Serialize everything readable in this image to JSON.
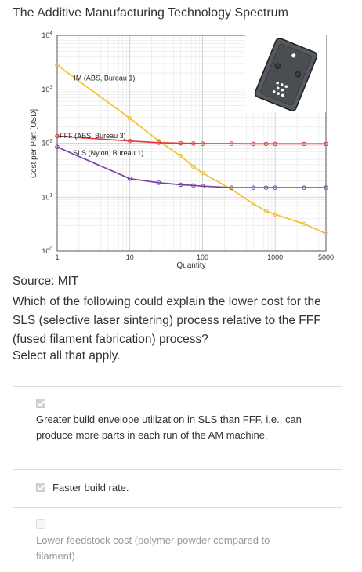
{
  "figure_title": "The Additive Manufacturing Technology Spectrum",
  "chart_data": {
    "type": "line",
    "xscale": "log",
    "yscale": "log",
    "xlim": [
      1,
      5000
    ],
    "ylim": [
      1,
      10000
    ],
    "xlabel": "Quantity",
    "ylabel": "Cost per Part [USD]",
    "x_tick_labels": [
      "1",
      "10",
      "100",
      "1000",
      "5000"
    ],
    "x_ticks": [
      1,
      10,
      100,
      1000,
      5000
    ],
    "y_ticks": [
      1,
      10,
      100,
      1000,
      10000
    ],
    "y_tick_bases": [
      "10",
      "10",
      "10",
      "10",
      "10"
    ],
    "y_tick_exponents": [
      "0",
      "1",
      "2",
      "3",
      "4"
    ],
    "grid": true,
    "series": [
      {
        "name": "IM (ABS, Bureau 1)",
        "color": "#f2c233",
        "points": [
          [
            1,
            2800
          ],
          [
            10,
            290
          ],
          [
            25,
            110
          ],
          [
            50,
            58
          ],
          [
            75,
            37
          ],
          [
            100,
            28
          ],
          [
            250,
            14
          ],
          [
            500,
            7.5
          ],
          [
            750,
            5.5
          ],
          [
            1000,
            4.8
          ],
          [
            2500,
            3.2
          ],
          [
            5000,
            2.1
          ]
        ]
      },
      {
        "name": "FFF (ABS, Bureau 3)",
        "color": "#e03c3c",
        "points": [
          [
            1,
            135
          ],
          [
            10,
            110
          ],
          [
            25,
            102
          ],
          [
            50,
            100
          ],
          [
            75,
            99
          ],
          [
            100,
            98
          ],
          [
            250,
            98
          ],
          [
            500,
            97
          ],
          [
            750,
            97
          ],
          [
            1000,
            97
          ],
          [
            2500,
            97
          ],
          [
            5000,
            97
          ]
        ]
      },
      {
        "name": "SLS (Nylon, Bureau 1)",
        "color": "#7b3fa6",
        "points": [
          [
            1,
            85
          ],
          [
            10,
            22
          ],
          [
            25,
            18.5
          ],
          [
            50,
            17
          ],
          [
            75,
            16.5
          ],
          [
            100,
            16
          ],
          [
            250,
            15
          ],
          [
            500,
            15
          ],
          [
            750,
            15
          ],
          [
            1000,
            15
          ],
          [
            2500,
            15
          ],
          [
            5000,
            15
          ]
        ]
      }
    ],
    "inset_image": "3d-printed-part-render"
  },
  "source_text": "Source: MIT",
  "question_text": "Which of the following could explain the lower cost for the SLS (selective laser sintering) process relative to the FFF (fused filament fabrication) process?",
  "instruction_text": "Select all that apply.",
  "options": [
    {
      "label": "Greater build envelope utilization in SLS than FFF, i.e., can produce more parts in each run of the AM machine.",
      "checked": true,
      "disabled": false
    },
    {
      "label": "Faster build rate.",
      "checked": true,
      "disabled": false
    },
    {
      "label": "Lower feedstock cost (polymer powder compared to filament).",
      "checked": false,
      "disabled": true
    }
  ]
}
